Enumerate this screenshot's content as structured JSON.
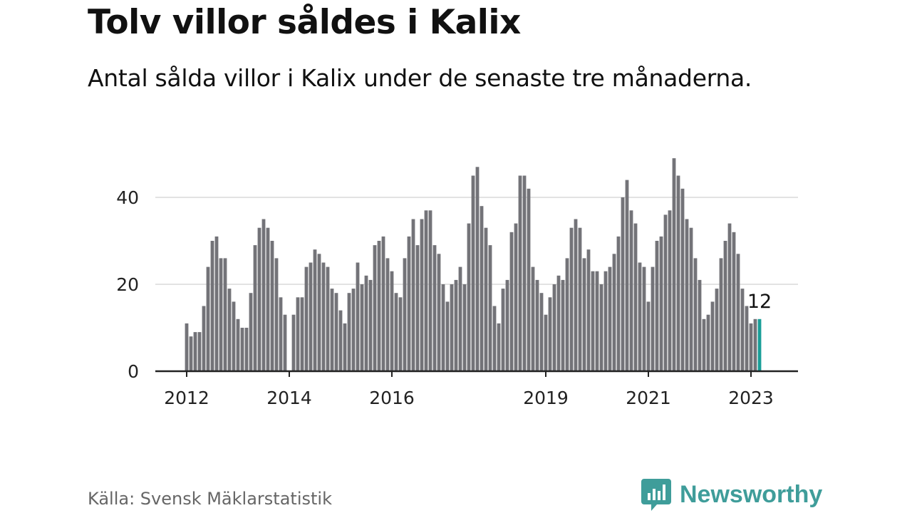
{
  "header": {
    "title": "Tolv villor såldes i Kalix",
    "subtitle": "Antal sålda villor i Kalix under de senaste tre månaderna."
  },
  "footer": {
    "source": "Källa: Svensk Mäklarstatistik",
    "brand": "Newsworthy"
  },
  "colors": {
    "bar": "#737378",
    "highlight": "#1a9e98",
    "grid": "#d9d9d9",
    "axis": "#222222",
    "brand": "#3f9d9a"
  },
  "chart_data": {
    "type": "bar",
    "title": "Tolv villor såldes i Kalix",
    "subtitle": "Antal sålda villor i Kalix under de senaste tre månaderna.",
    "xlabel": "",
    "ylabel": "",
    "ylim": [
      0,
      50
    ],
    "yticks": [
      0,
      20,
      40
    ],
    "grid": true,
    "x_tick_labels": [
      {
        "label": "2012",
        "index": 0
      },
      {
        "label": "2014",
        "index": 24
      },
      {
        "label": "2016",
        "index": 48
      },
      {
        "label": "2019",
        "index": 84
      },
      {
        "label": "2021",
        "index": 108
      },
      {
        "label": "2023",
        "index": 132
      }
    ],
    "start_month": "2012-01",
    "end_month": "2023-03",
    "values": [
      11,
      8,
      9,
      9,
      15,
      24,
      30,
      31,
      26,
      26,
      19,
      16,
      12,
      10,
      10,
      18,
      29,
      33,
      35,
      33,
      30,
      26,
      17,
      13,
      0,
      13,
      17,
      17,
      24,
      25,
      28,
      27,
      25,
      24,
      19,
      18,
      14,
      11,
      18,
      19,
      25,
      20,
      22,
      21,
      29,
      30,
      31,
      26,
      23,
      18,
      17,
      26,
      31,
      35,
      29,
      35,
      37,
      37,
      29,
      27,
      20,
      16,
      20,
      21,
      24,
      20,
      34,
      45,
      47,
      38,
      33,
      29,
      15,
      11,
      19,
      21,
      32,
      34,
      45,
      45,
      42,
      24,
      21,
      18,
      13,
      17,
      20,
      22,
      21,
      26,
      33,
      35,
      33,
      26,
      28,
      23,
      23,
      20,
      23,
      24,
      27,
      31,
      40,
      44,
      37,
      34,
      25,
      24,
      16,
      24,
      30,
      31,
      36,
      37,
      49,
      45,
      42,
      35,
      33,
      26,
      21,
      12,
      13,
      16,
      19,
      26,
      30,
      34,
      32,
      27,
      19,
      15,
      11,
      12,
      12
    ],
    "highlight_index": 134,
    "annotation": {
      "index": 134,
      "text": "12"
    }
  }
}
